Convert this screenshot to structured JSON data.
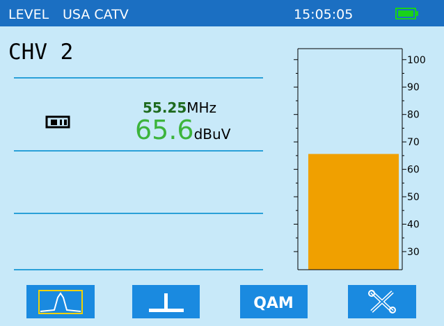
{
  "header": {
    "mode": "LEVEL",
    "standard": "USA CATV",
    "time": "15:05:05"
  },
  "channel": "CHV 2",
  "reading": {
    "frequency": "55.25",
    "frequency_unit": "MHz",
    "level": 65.6,
    "level_unit": "dBuV"
  },
  "meter": {
    "ylim": [
      23.4,
      104
    ],
    "yticks": [
      100,
      90,
      80,
      70,
      60,
      50,
      40,
      30
    ],
    "color": "#f0a000"
  },
  "buttons": {
    "qam": "QAM"
  }
}
